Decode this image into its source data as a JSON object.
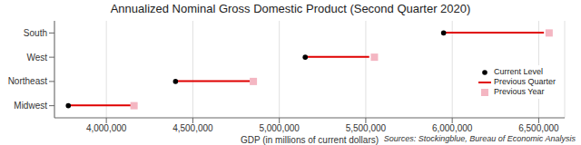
{
  "chart_data": {
    "type": "dumbbell",
    "title": "Annualized Nominal Gross Domestic Product (Second Quarter 2020)",
    "x_label": "GDP (in millions of current dollars)",
    "source": "Sources: Stockingblue, Bureau of Economic Analysis",
    "orientation": "horizontal",
    "categories": [
      "South",
      "West",
      "Northeast",
      "Midwest"
    ],
    "series": [
      {
        "name": "Current Level",
        "color": "#000000",
        "marker": "circle",
        "values": [
          5950000,
          5150000,
          4400000,
          3780000
        ]
      },
      {
        "name": "Previous Quarter",
        "color": "#e00000",
        "line_style": "solid",
        "values": [
          6530000,
          5520000,
          4830000,
          4150000
        ]
      },
      {
        "name": "Previous Year",
        "color": "#f4b6c2",
        "marker": "square",
        "values": [
          6560000,
          5550000,
          4850000,
          4160000
        ]
      }
    ],
    "xlim": [
      3700000,
      6650000
    ],
    "xticks": [
      {
        "value": 4000000,
        "label": "4,000,000"
      },
      {
        "value": 4500000,
        "label": "4,500,000"
      },
      {
        "value": 5000000,
        "label": "5,000,000"
      },
      {
        "value": 5500000,
        "label": "5,500,000"
      },
      {
        "value": 6000000,
        "label": "6,000,000"
      },
      {
        "value": 6500000,
        "label": "6,500,000"
      }
    ],
    "grid": true,
    "legend": "lower right"
  }
}
